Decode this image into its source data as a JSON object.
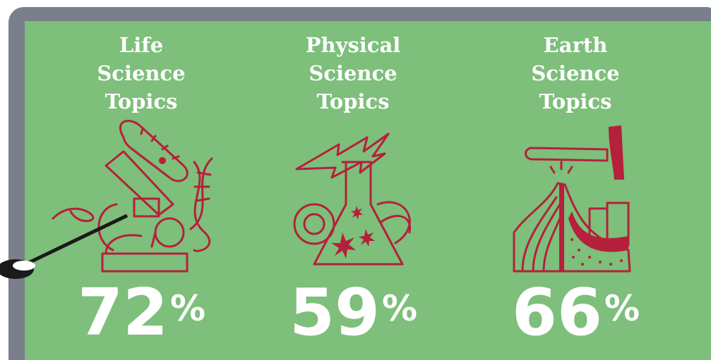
{
  "panels": [
    {
      "title": [
        "Life",
        "Science",
        "Topics"
      ],
      "number": "72",
      "unit": "%"
    },
    {
      "title": [
        "Physical",
        "Science",
        "Topics"
      ],
      "number": "59",
      "unit": "%"
    },
    {
      "title": [
        "Earth",
        "Science",
        "Topics"
      ],
      "number": "66",
      "unit": "%"
    }
  ]
}
